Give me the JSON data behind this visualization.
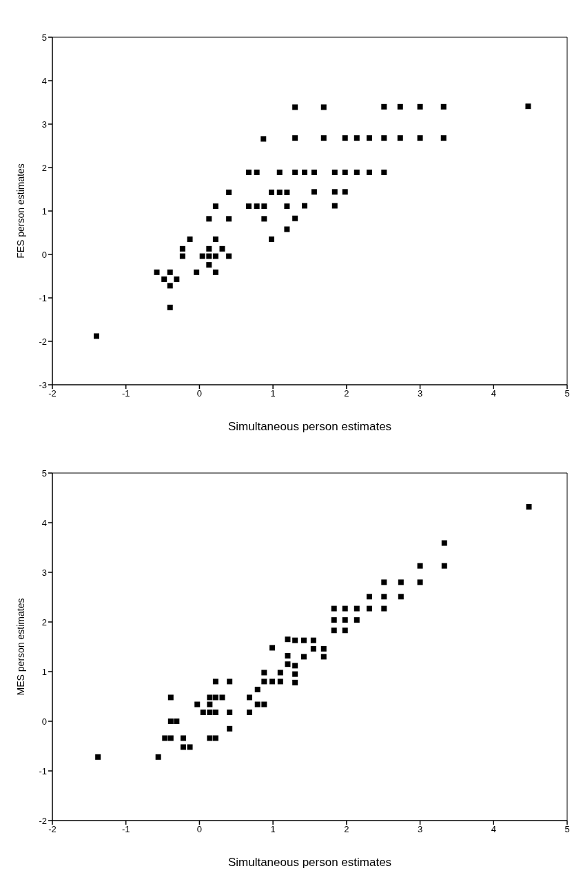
{
  "chart_data": [
    {
      "type": "scatter",
      "xlabel": "Simultaneous person estimates",
      "ylabel": "FES person estimates",
      "xlim": [
        -2,
        5
      ],
      "xticks": [
        -2,
        -1,
        0,
        1,
        2,
        3,
        4,
        5
      ],
      "ylim": [
        -3,
        5
      ],
      "yticks": [
        -3,
        -2,
        -1,
        0,
        1,
        2,
        3,
        4,
        5
      ],
      "marker": "square",
      "grid": false,
      "legend": false,
      "series": [
        {
          "color": "#000000",
          "x": [
            -1.4,
            -0.58,
            -0.48,
            -0.4,
            -0.31,
            -0.4,
            -0.4,
            -0.23,
            -0.23,
            -0.13,
            -0.04,
            0.04,
            0.13,
            0.13,
            0.13,
            0.13,
            0.22,
            0.22,
            0.22,
            0.22,
            0.31,
            0.4,
            0.4,
            0.4,
            0.67,
            0.67,
            0.78,
            0.78,
            0.87,
            0.88,
            0.88,
            0.98,
            0.98,
            1.09,
            1.09,
            1.19,
            1.19,
            1.19,
            1.3,
            1.69,
            2.51,
            2.73,
            3.0,
            3.32,
            4.47,
            1.3,
            1.69,
            1.98,
            2.14,
            2.31,
            2.51,
            2.73,
            3.0,
            3.32,
            1.3,
            1.43,
            1.56,
            1.84,
            1.98,
            2.14,
            2.31,
            2.51,
            1.56,
            1.84,
            1.98,
            1.43,
            1.84,
            1.3
          ],
          "values": [
            -1.88,
            -0.41,
            -0.57,
            -0.41,
            -0.57,
            -0.72,
            -1.22,
            0.13,
            -0.04,
            0.35,
            -0.41,
            -0.04,
            0.82,
            0.13,
            -0.04,
            -0.24,
            1.11,
            0.35,
            -0.04,
            -0.41,
            0.13,
            1.43,
            0.82,
            -0.04,
            1.89,
            1.11,
            1.89,
            1.11,
            2.66,
            1.11,
            0.82,
            1.43,
            0.35,
            1.89,
            1.43,
            1.43,
            1.11,
            0.58,
            3.39,
            3.39,
            3.4,
            3.4,
            3.4,
            3.4,
            3.41,
            2.68,
            2.68,
            2.68,
            2.68,
            2.68,
            2.68,
            2.68,
            2.68,
            2.68,
            1.89,
            1.89,
            1.89,
            1.89,
            1.89,
            1.89,
            1.89,
            1.89,
            1.44,
            1.44,
            1.44,
            1.12,
            1.12,
            0.83
          ]
        }
      ]
    },
    {
      "type": "scatter",
      "xlabel": "Simultaneous person estimates",
      "ylabel": "MES person estimates",
      "xlim": [
        -2,
        5
      ],
      "xticks": [
        -2,
        -1,
        0,
        1,
        2,
        3,
        4,
        5
      ],
      "ylim": [
        -2,
        5
      ],
      "yticks": [
        -2,
        -1,
        0,
        1,
        2,
        3,
        4,
        5
      ],
      "marker": "square",
      "grid": false,
      "legend": false,
      "series": [
        {
          "color": "#000000",
          "x": [
            -1.38,
            -0.56,
            -0.39,
            -0.39,
            -0.31,
            -0.47,
            -0.39,
            -0.22,
            -0.22,
            -0.13,
            -0.03,
            0.05,
            0.14,
            0.14,
            0.14,
            0.14,
            0.22,
            0.22,
            0.22,
            0.22,
            0.31,
            0.41,
            0.41,
            0.41,
            0.68,
            0.68,
            0.79,
            0.79,
            0.88,
            0.88,
            0.88,
            0.99,
            0.99,
            1.1,
            1.1,
            1.2,
            1.2,
            1.2,
            1.3,
            1.3,
            1.3,
            1.3,
            1.42,
            1.42,
            1.55,
            1.55,
            1.69,
            1.69,
            1.83,
            1.83,
            1.83,
            1.98,
            1.98,
            1.98,
            2.14,
            2.14,
            2.31,
            2.31,
            2.51,
            2.51,
            2.51,
            2.74,
            2.74,
            3.0,
            3.0,
            3.33,
            3.33,
            4.48
          ],
          "values": [
            -0.72,
            -0.72,
            0.48,
            0,
            0,
            -0.34,
            -0.34,
            -0.34,
            -0.52,
            -0.52,
            0.34,
            0.18,
            0.48,
            0.34,
            0.18,
            -0.34,
            0.8,
            0.48,
            0.18,
            -0.34,
            0.48,
            0.8,
            0.18,
            -0.15,
            0.48,
            0.18,
            0.64,
            0.34,
            0.98,
            0.8,
            0.34,
            1.48,
            0.8,
            0.98,
            0.8,
            1.65,
            1.32,
            1.15,
            1.63,
            1.12,
            0.95,
            0.78,
            1.63,
            1.3,
            1.63,
            1.46,
            1.46,
            1.3,
            2.27,
            2.04,
            1.83,
            2.27,
            2.04,
            1.83,
            2.27,
            2.04,
            2.51,
            2.27,
            2.8,
            2.51,
            2.27,
            2.8,
            2.51,
            3.13,
            2.8,
            3.59,
            3.13,
            4.32
          ]
        }
      ]
    }
  ]
}
